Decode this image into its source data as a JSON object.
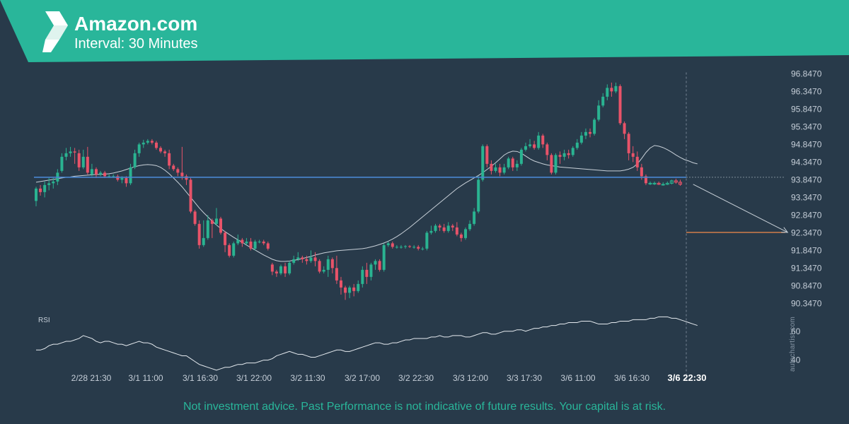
{
  "header": {
    "title": "Amazon.com",
    "subtitle": "Interval: 30 Minutes"
  },
  "footer": {
    "disclaimer": "Not investment advice. Past Performance is not indicative of future results. Your capital is at risk.",
    "watermark": "autochartist.com"
  },
  "colors": {
    "banner": "#29b69a",
    "background": "#283a4a",
    "up_candle": "#2ab391",
    "down_candle": "#e85369",
    "support_line": "#4a86d0",
    "target_line": "#f28a4b",
    "moving_average": "#c8d0d8",
    "forecast_arrow": "#c8d0d8",
    "axis_text": "#c5ced8"
  },
  "chart_data": {
    "type": "candlestick",
    "title": "Amazon.com",
    "subtitle": "Interval: 30 Minutes",
    "price_axis_ticks": [
      96.847,
      96.347,
      95.847,
      95.347,
      94.847,
      94.347,
      93.847,
      93.347,
      92.847,
      92.347,
      91.847,
      91.347,
      90.847,
      90.347
    ],
    "ylim": [
      90.2,
      96.95
    ],
    "x_tick_labels": [
      "2/28 21:30",
      "3/1 11:00",
      "3/1 16:30",
      "3/1 22:00",
      "3/2 11:30",
      "3/2 17:00",
      "3/2 22:30",
      "3/3 12:00",
      "3/3 17:30",
      "3/6 11:00",
      "3/6 16:30",
      "3/6 22:30"
    ],
    "highlighted_x_label": "3/6 22:30",
    "support_level": 93.92,
    "target_level": 92.36,
    "forecast": {
      "from_index": 153,
      "from_price": 93.72,
      "to_index": 175,
      "to_price": 92.36
    },
    "candles": [
      [
        93.25,
        93.6,
        93.65,
        93.1
      ],
      [
        93.6,
        93.5,
        93.7,
        93.4
      ],
      [
        93.5,
        93.7,
        93.8,
        93.35
      ],
      [
        93.7,
        93.75,
        93.9,
        93.55
      ],
      [
        93.75,
        93.8,
        93.9,
        93.6
      ],
      [
        93.8,
        94.05,
        94.15,
        93.7
      ],
      [
        94.1,
        94.5,
        94.6,
        94.05
      ],
      [
        94.5,
        94.6,
        94.75,
        94.4
      ],
      [
        94.6,
        94.65,
        94.78,
        94.5
      ],
      [
        94.65,
        94.62,
        94.75,
        94.3
      ],
      [
        94.6,
        94.2,
        94.7,
        94.1
      ],
      [
        94.2,
        94.5,
        94.7,
        94.15
      ],
      [
        94.5,
        94.05,
        94.78,
        94.0
      ],
      [
        94.0,
        94.15,
        94.3,
        93.95
      ],
      [
        94.15,
        94.0,
        94.2,
        93.9
      ],
      [
        94.0,
        94.05,
        94.1,
        93.95
      ],
      [
        94.05,
        93.95,
        94.1,
        93.9
      ],
      [
        93.95,
        93.95,
        94.0,
        93.9
      ],
      [
        93.95,
        93.95,
        94.0,
        93.9
      ],
      [
        93.95,
        93.85,
        94.0,
        93.8
      ],
      [
        93.85,
        93.9,
        93.95,
        93.75
      ],
      [
        93.9,
        93.75,
        93.95,
        93.65
      ],
      [
        93.75,
        94.2,
        94.3,
        93.7
      ],
      [
        94.2,
        94.6,
        94.7,
        94.15
      ],
      [
        94.6,
        94.85,
        94.9,
        94.5
      ],
      [
        94.85,
        94.9,
        94.98,
        94.75
      ],
      [
        94.9,
        94.95,
        95.0,
        94.85
      ],
      [
        94.95,
        94.9,
        95.0,
        94.85
      ],
      [
        94.9,
        94.75,
        94.95,
        94.7
      ],
      [
        94.75,
        94.65,
        94.8,
        94.6
      ],
      [
        94.65,
        94.6,
        94.7,
        94.5
      ],
      [
        94.6,
        94.25,
        94.7,
        94.15
      ],
      [
        94.25,
        94.15,
        94.3,
        94.1
      ],
      [
        94.15,
        94.05,
        94.2,
        93.95
      ],
      [
        94.05,
        93.95,
        94.78,
        93.85
      ],
      [
        93.95,
        93.85,
        94.0,
        93.7
      ],
      [
        93.85,
        92.95,
        93.9,
        92.9
      ],
      [
        92.95,
        92.6,
        93.0,
        92.55
      ],
      [
        92.6,
        92.0,
        92.7,
        91.9
      ],
      [
        92.0,
        92.2,
        92.7,
        91.95
      ],
      [
        92.2,
        92.7,
        92.85,
        92.15
      ],
      [
        92.7,
        92.6,
        92.75,
        92.2
      ],
      [
        92.6,
        92.75,
        93.05,
        92.55
      ],
      [
        92.75,
        92.35,
        92.8,
        92.3
      ],
      [
        92.35,
        92.0,
        92.4,
        91.8
      ],
      [
        92.0,
        91.7,
        92.05,
        91.65
      ],
      [
        91.7,
        92.05,
        92.1,
        91.65
      ],
      [
        92.05,
        92.15,
        92.3,
        92.0
      ],
      [
        92.15,
        92.05,
        92.2,
        91.95
      ],
      [
        92.05,
        92.1,
        92.2,
        92.0
      ],
      [
        92.1,
        91.9,
        92.2,
        91.85
      ],
      [
        91.9,
        92.1,
        92.15,
        91.85
      ],
      [
        92.1,
        92.1,
        92.15,
        92.05
      ],
      [
        92.1,
        92.05,
        92.15,
        92.0
      ],
      [
        92.05,
        91.9,
        92.1,
        91.85
      ],
      [
        91.45,
        91.25,
        91.5,
        91.15
      ],
      [
        91.25,
        91.2,
        91.3,
        91.1
      ],
      [
        91.2,
        91.4,
        91.45,
        91.15
      ],
      [
        91.4,
        91.2,
        91.5,
        91.1
      ],
      [
        91.2,
        91.5,
        91.55,
        91.15
      ],
      [
        91.5,
        91.6,
        91.7,
        91.45
      ],
      [
        91.6,
        91.65,
        91.8,
        91.55
      ],
      [
        91.65,
        91.6,
        91.7,
        91.5
      ],
      [
        91.6,
        91.55,
        91.7,
        91.45
      ],
      [
        91.55,
        91.65,
        91.85,
        91.5
      ],
      [
        91.65,
        91.55,
        91.8,
        91.4
      ],
      [
        91.55,
        91.25,
        91.6,
        91.2
      ],
      [
        91.25,
        91.3,
        91.4,
        91.2
      ],
      [
        91.3,
        91.6,
        91.7,
        91.1
      ],
      [
        91.6,
        91.35,
        91.65,
        91.2
      ],
      [
        91.35,
        91.0,
        91.7,
        90.9
      ],
      [
        91.0,
        90.8,
        91.1,
        90.6
      ],
      [
        90.8,
        90.65,
        90.85,
        90.45
      ],
      [
        90.65,
        90.8,
        90.85,
        90.5
      ],
      [
        90.8,
        90.7,
        90.9,
        90.55
      ],
      [
        90.7,
        90.9,
        91.0,
        90.65
      ],
      [
        90.9,
        91.3,
        91.4,
        90.8
      ],
      [
        91.3,
        91.1,
        91.5,
        90.9
      ],
      [
        91.1,
        91.45,
        91.5,
        91.0
      ],
      [
        91.45,
        91.55,
        91.6,
        91.3
      ],
      [
        91.55,
        91.3,
        91.6,
        91.25
      ],
      [
        91.3,
        92.0,
        92.05,
        91.25
      ],
      [
        92.0,
        92.05,
        92.1,
        91.95
      ],
      [
        92.05,
        91.95,
        92.1,
        91.9
      ],
      [
        91.95,
        91.95,
        92.0,
        91.9
      ],
      [
        91.95,
        91.95,
        92.0,
        91.9
      ],
      [
        91.95,
        91.97,
        92.0,
        91.9
      ],
      [
        91.97,
        91.95,
        92.0,
        91.92
      ],
      [
        91.95,
        91.95,
        92.0,
        91.9
      ],
      [
        91.95,
        91.9,
        92.0,
        91.85
      ],
      [
        91.9,
        91.9,
        91.95,
        91.85
      ],
      [
        91.9,
        92.35,
        92.4,
        91.85
      ],
      [
        92.35,
        92.4,
        92.55,
        92.3
      ],
      [
        92.4,
        92.55,
        92.6,
        92.35
      ],
      [
        92.55,
        92.5,
        92.6,
        92.4
      ],
      [
        92.5,
        92.4,
        92.6,
        92.35
      ],
      [
        92.4,
        92.55,
        92.65,
        92.35
      ],
      [
        92.55,
        92.5,
        92.6,
        92.4
      ],
      [
        92.5,
        92.3,
        92.65,
        92.25
      ],
      [
        92.3,
        92.2,
        92.35,
        92.1
      ],
      [
        92.2,
        92.45,
        92.5,
        92.15
      ],
      [
        92.45,
        92.6,
        92.7,
        92.4
      ],
      [
        92.6,
        92.95,
        93.05,
        92.55
      ],
      [
        92.95,
        93.85,
        93.95,
        92.9
      ],
      [
        93.85,
        94.8,
        94.85,
        93.8
      ],
      [
        94.8,
        94.3,
        94.85,
        94.2
      ],
      [
        94.3,
        94.1,
        94.4,
        94.0
      ],
      [
        94.1,
        94.2,
        94.3,
        94.05
      ],
      [
        94.2,
        94.05,
        94.3,
        93.95
      ],
      [
        94.05,
        94.2,
        94.3,
        94.0
      ],
      [
        94.2,
        94.45,
        94.5,
        94.15
      ],
      [
        94.45,
        94.2,
        94.5,
        94.1
      ],
      [
        94.2,
        94.3,
        94.4,
        94.1
      ],
      [
        94.3,
        94.7,
        94.75,
        94.25
      ],
      [
        94.7,
        94.8,
        94.9,
        94.65
      ],
      [
        94.8,
        94.85,
        95.0,
        94.75
      ],
      [
        94.85,
        94.75,
        94.95,
        94.7
      ],
      [
        94.75,
        95.1,
        95.2,
        94.7
      ],
      [
        95.1,
        94.85,
        95.15,
        94.75
      ],
      [
        94.85,
        94.55,
        94.9,
        94.4
      ],
      [
        94.55,
        94.05,
        94.6,
        94.0
      ],
      [
        94.05,
        94.55,
        94.6,
        94.0
      ],
      [
        94.55,
        94.5,
        94.65,
        94.3
      ],
      [
        94.5,
        94.6,
        94.7,
        94.4
      ],
      [
        94.6,
        94.55,
        94.7,
        94.45
      ],
      [
        94.55,
        94.75,
        94.8,
        94.5
      ],
      [
        94.75,
        94.9,
        95.0,
        94.7
      ],
      [
        94.9,
        95.1,
        95.2,
        94.85
      ],
      [
        95.1,
        95.2,
        95.3,
        95.0
      ],
      [
        95.2,
        95.15,
        95.3,
        95.05
      ],
      [
        95.15,
        95.55,
        95.6,
        95.1
      ],
      [
        95.55,
        95.95,
        96.1,
        95.5
      ],
      [
        95.95,
        96.2,
        96.3,
        95.9
      ],
      [
        96.2,
        96.45,
        96.55,
        96.1
      ],
      [
        96.45,
        96.35,
        96.6,
        96.2
      ],
      [
        96.35,
        96.5,
        96.6,
        96.3
      ],
      [
        96.5,
        95.45,
        96.55,
        95.4
      ],
      [
        95.45,
        95.15,
        95.5,
        95.0
      ],
      [
        95.15,
        94.6,
        95.2,
        94.4
      ],
      [
        94.6,
        94.5,
        94.8,
        94.35
      ],
      [
        94.5,
        94.2,
        94.65,
        94.1
      ],
      [
        94.2,
        93.95,
        94.3,
        93.85
      ],
      [
        93.95,
        93.75,
        94.0,
        93.7
      ],
      [
        93.75,
        93.75,
        93.8,
        93.7
      ],
      [
        93.75,
        93.75,
        93.8,
        93.7
      ],
      [
        93.75,
        93.72,
        93.8,
        93.7
      ],
      [
        93.72,
        93.72,
        93.78,
        93.68
      ],
      [
        93.72,
        93.75,
        93.8,
        93.7
      ],
      [
        93.75,
        93.82,
        93.85,
        93.72
      ],
      [
        93.82,
        93.78,
        93.88,
        93.74
      ],
      [
        93.78,
        93.72,
        93.85,
        93.68
      ]
    ],
    "moving_average": [
      93.78,
      93.8,
      93.82,
      93.84,
      93.86,
      93.88,
      93.9,
      93.92,
      93.93,
      93.95,
      93.96,
      93.97,
      93.98,
      93.99,
      94.0,
      94.0,
      94.01,
      94.02,
      94.04,
      94.07,
      94.1,
      94.14,
      94.18,
      94.22,
      94.25,
      94.27,
      94.28,
      94.27,
      94.25,
      94.2,
      94.12,
      94.02,
      93.9,
      93.78,
      93.65,
      93.5,
      93.35,
      93.2,
      93.05,
      92.92,
      92.8,
      92.68,
      92.57,
      92.47,
      92.38,
      92.3,
      92.22,
      92.15,
      92.08,
      92.0,
      91.93,
      91.86,
      91.79,
      91.72,
      91.66,
      91.6,
      91.56,
      91.54,
      91.54,
      91.55,
      91.57,
      91.59,
      91.62,
      91.65,
      91.68,
      91.72,
      91.75,
      91.78,
      91.8,
      91.82,
      91.84,
      91.85,
      91.86,
      91.87,
      91.88,
      91.89,
      91.9,
      91.92,
      91.95,
      91.98,
      92.02,
      92.06,
      92.11,
      92.17,
      92.24,
      92.32,
      92.41,
      92.5,
      92.6,
      92.7,
      92.8,
      92.9,
      93.0,
      93.1,
      93.2,
      93.3,
      93.4,
      93.5,
      93.6,
      93.68,
      93.76,
      93.83,
      93.9,
      93.97,
      94.05,
      94.14,
      94.23,
      94.33,
      94.44,
      94.55,
      94.62,
      94.66,
      94.65,
      94.6,
      94.52,
      94.44,
      94.38,
      94.34,
      94.3,
      94.27,
      94.25,
      94.23,
      94.21,
      94.2,
      94.19,
      94.18,
      94.17,
      94.16,
      94.15,
      94.14,
      94.13,
      94.12,
      94.11,
      94.1,
      94.1,
      94.1,
      94.1,
      94.12,
      94.15,
      94.2,
      94.3,
      94.45,
      94.62,
      94.75,
      94.82,
      94.8,
      94.76,
      94.7,
      94.63,
      94.55,
      94.48,
      94.42,
      94.38,
      94.33,
      94.3
    ],
    "rsi": {
      "label": "RSI",
      "ticks": [
        60,
        40
      ],
      "ylim": [
        30,
        78
      ],
      "values": [
        47,
        47,
        48,
        50,
        51,
        51,
        52,
        53,
        53,
        54,
        55,
        57,
        56,
        55,
        53,
        52,
        53,
        53,
        52,
        51,
        51,
        50,
        51,
        52,
        53,
        52,
        52,
        51,
        49,
        48,
        47,
        46,
        45,
        44,
        43,
        43,
        41,
        39,
        37,
        36,
        35,
        34,
        33,
        34,
        35,
        35,
        36,
        37,
        37,
        38,
        38,
        38,
        39,
        40,
        40,
        41,
        43,
        44,
        45,
        46,
        45,
        44,
        44,
        43,
        42,
        42,
        43,
        44,
        45,
        46,
        47,
        47,
        46,
        46,
        47,
        48,
        49,
        50,
        51,
        52,
        52,
        51,
        51,
        52,
        52,
        53,
        54,
        54,
        55,
        55,
        55,
        55,
        56,
        56,
        57,
        56,
        56,
        57,
        57,
        57,
        56,
        56,
        57,
        58,
        59,
        59,
        58,
        58,
        59,
        60,
        60,
        60,
        61,
        61,
        60,
        61,
        62,
        62,
        63,
        63,
        64,
        64,
        65,
        65,
        66,
        66,
        66,
        67,
        67,
        67,
        66,
        65,
        65,
        65,
        66,
        66,
        67,
        67,
        67,
        68,
        68,
        68,
        68,
        69,
        69,
        70,
        70,
        70,
        69,
        69,
        68,
        67,
        66,
        65,
        64
      ]
    }
  }
}
